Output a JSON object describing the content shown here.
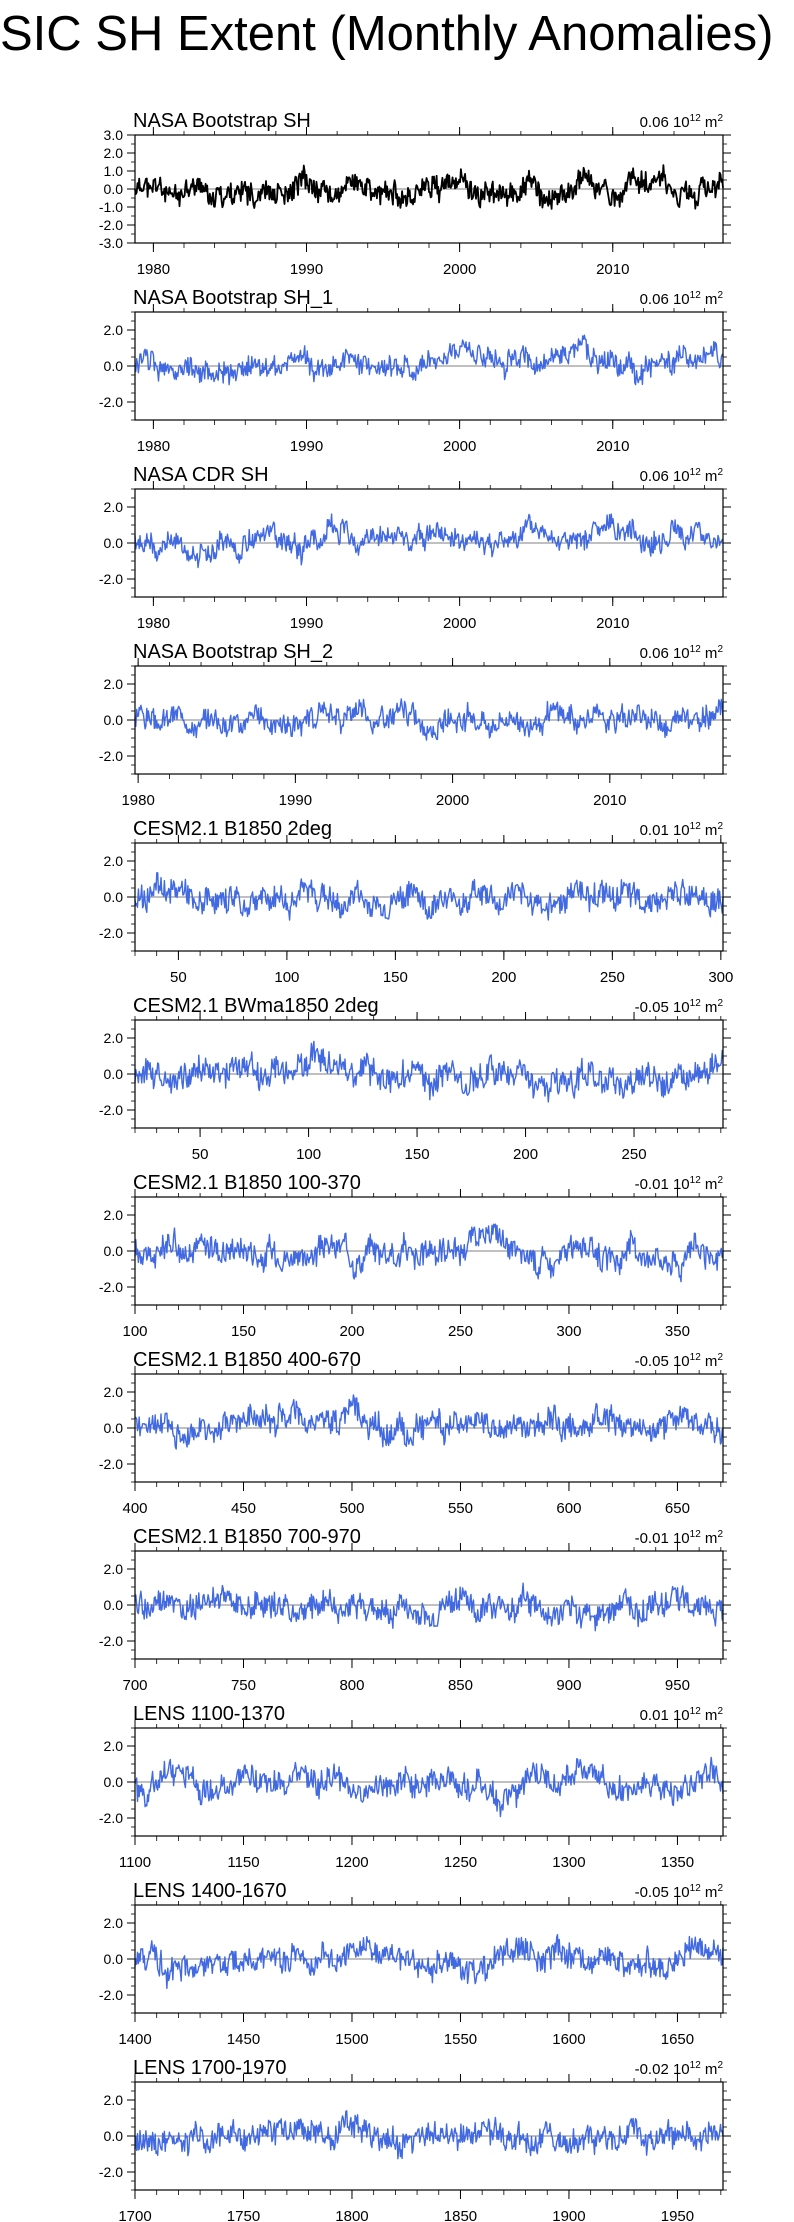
{
  "title": "SIC SH Extent (Monthly Anomalies)",
  "unit": "10",
  "unit_exp": "12",
  "unit_suffix": "m",
  "unit_sup": "2",
  "colors": {
    "observed": "#000000",
    "model": "#4169e1",
    "zero_line": "#808080"
  },
  "chart_data": [
    {
      "type": "line",
      "title": "NASA Bootstrap SH",
      "mean_label": "0.06",
      "x_range": [
        1978.8,
        2017.2
      ],
      "ylim": [
        -3.0,
        3.0
      ],
      "y_ticks": [
        "3.0",
        "2.0",
        "1.0",
        "0.0",
        "-1.0",
        "-2.0",
        "-3.0"
      ],
      "y_tick_values": [
        3,
        2,
        1,
        0,
        -1,
        -2,
        -3
      ],
      "x_ticks": [
        1980,
        1990,
        2000,
        2010
      ],
      "amplitude": 0.5,
      "trend": 0.25,
      "series_color": "observed",
      "seed": 11
    },
    {
      "type": "line",
      "title": "NASA Bootstrap SH_1",
      "mean_label": "0.06",
      "x_range": [
        1978.8,
        2017.2
      ],
      "ylim": [
        -3.0,
        3.0
      ],
      "y_ticks": [
        "2.0",
        "0.0",
        "-2.0"
      ],
      "y_tick_values": [
        2,
        0,
        -2
      ],
      "x_ticks": [
        1980,
        1990,
        2000,
        2010
      ],
      "amplitude": 0.5,
      "trend": 0.25,
      "series_color": "model",
      "seed": 12
    },
    {
      "type": "line",
      "title": "NASA CDR SH",
      "mean_label": "0.06",
      "x_range": [
        1978.8,
        2017.2
      ],
      "ylim": [
        -3.0,
        3.0
      ],
      "y_ticks": [
        "2.0",
        "0.0",
        "-2.0"
      ],
      "y_tick_values": [
        2,
        0,
        -2
      ],
      "x_ticks": [
        1980,
        1990,
        2000,
        2010
      ],
      "amplitude": 0.5,
      "trend": 0.25,
      "series_color": "model",
      "seed": 13
    },
    {
      "type": "line",
      "title": "NASA Bootstrap SH_2",
      "mean_label": "0.06",
      "x_range": [
        1979.8,
        2017.2
      ],
      "ylim": [
        -3.0,
        3.0
      ],
      "y_ticks": [
        "2.0",
        "0.0",
        "-2.0"
      ],
      "y_tick_values": [
        2,
        0,
        -2
      ],
      "x_ticks": [
        1980,
        1990,
        2000,
        2010
      ],
      "amplitude": 0.5,
      "trend": 0.25,
      "series_color": "model",
      "seed": 14
    },
    {
      "type": "line",
      "title": "CESM2.1 B1850 2deg",
      "mean_label": "0.01",
      "x_range": [
        30,
        301
      ],
      "ylim": [
        -3.0,
        3.0
      ],
      "y_ticks": [
        "2.0",
        "0.0",
        "-2.0"
      ],
      "y_tick_values": [
        2,
        0,
        -2
      ],
      "x_ticks": [
        50,
        100,
        150,
        200,
        250,
        300
      ],
      "amplitude": 0.6,
      "trend": 0,
      "series_color": "model",
      "seed": 15
    },
    {
      "type": "line",
      "title": "CESM2.1 BWma1850 2deg",
      "mean_label": "-0.05",
      "x_range": [
        20,
        291
      ],
      "ylim": [
        -3.0,
        3.0
      ],
      "y_ticks": [
        "2.0",
        "0.0",
        "-2.0"
      ],
      "y_tick_values": [
        2,
        0,
        -2
      ],
      "x_ticks": [
        50,
        100,
        150,
        200,
        250
      ],
      "amplitude": 0.65,
      "trend": 0,
      "series_color": "model",
      "seed": 16
    },
    {
      "type": "line",
      "title": "CESM2.1 B1850 100-370",
      "mean_label": "-0.01",
      "x_range": [
        100,
        371
      ],
      "ylim": [
        -3.0,
        3.0
      ],
      "y_ticks": [
        "2.0",
        "0.0",
        "-2.0"
      ],
      "y_tick_values": [
        2,
        0,
        -2
      ],
      "x_ticks": [
        100,
        150,
        200,
        250,
        300,
        350
      ],
      "amplitude": 0.6,
      "trend": 0,
      "series_color": "model",
      "seed": 17
    },
    {
      "type": "line",
      "title": "CESM2.1 B1850 400-670",
      "mean_label": "-0.05",
      "x_range": [
        400,
        671
      ],
      "ylim": [
        -3.0,
        3.0
      ],
      "y_ticks": [
        "2.0",
        "0.0",
        "-2.0"
      ],
      "y_tick_values": [
        2,
        0,
        -2
      ],
      "x_ticks": [
        400,
        450,
        500,
        550,
        600,
        650
      ],
      "amplitude": 0.6,
      "trend": 0,
      "series_color": "model",
      "seed": 18
    },
    {
      "type": "line",
      "title": "CESM2.1 B1850 700-970",
      "mean_label": "-0.01",
      "x_range": [
        700,
        971
      ],
      "ylim": [
        -3.0,
        3.0
      ],
      "y_ticks": [
        "2.0",
        "0.0",
        "-2.0"
      ],
      "y_tick_values": [
        2,
        0,
        -2
      ],
      "x_ticks": [
        700,
        750,
        800,
        850,
        900,
        950
      ],
      "amplitude": 0.6,
      "trend": 0,
      "series_color": "model",
      "seed": 19
    },
    {
      "type": "line",
      "title": "LENS 1100-1370",
      "mean_label": "0.01",
      "x_range": [
        1100,
        1371
      ],
      "ylim": [
        -3.0,
        3.0
      ],
      "y_ticks": [
        "2.0",
        "0.0",
        "-2.0"
      ],
      "y_tick_values": [
        2,
        0,
        -2
      ],
      "x_ticks": [
        1100,
        1150,
        1200,
        1250,
        1300,
        1350
      ],
      "amplitude": 0.6,
      "trend": 0,
      "series_color": "model",
      "seed": 20
    },
    {
      "type": "line",
      "title": "LENS 1400-1670",
      "mean_label": "-0.05",
      "x_range": [
        1400,
        1671
      ],
      "ylim": [
        -3.0,
        3.0
      ],
      "y_ticks": [
        "2.0",
        "0.0",
        "-2.0"
      ],
      "y_tick_values": [
        2,
        0,
        -2
      ],
      "x_ticks": [
        1400,
        1450,
        1500,
        1550,
        1600,
        1650
      ],
      "amplitude": 0.6,
      "trend": 0,
      "series_color": "model",
      "seed": 21
    },
    {
      "type": "line",
      "title": "LENS 1700-1970",
      "mean_label": "-0.02",
      "x_range": [
        1700,
        1971
      ],
      "ylim": [
        -3.0,
        3.0
      ],
      "y_ticks": [
        "2.0",
        "0.0",
        "-2.0"
      ],
      "y_tick_values": [
        2,
        0,
        -2
      ],
      "x_ticks": [
        1700,
        1750,
        1800,
        1850,
        1900,
        1950
      ],
      "amplitude": 0.6,
      "trend": 0,
      "series_color": "model",
      "seed": 22
    }
  ]
}
